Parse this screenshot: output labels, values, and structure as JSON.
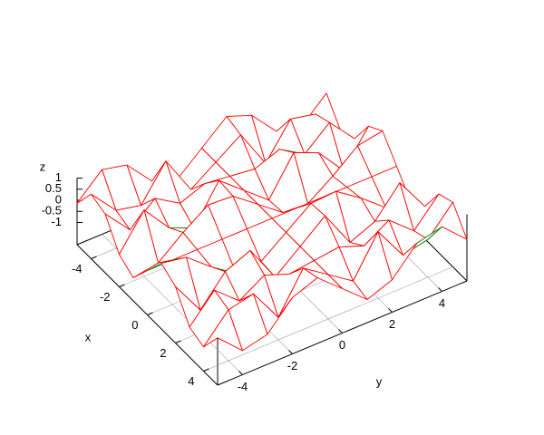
{
  "chart_data": {
    "type": "surface",
    "xlabel": "x",
    "ylabel": "y",
    "zlabel": "z",
    "x": [
      -5,
      -4,
      -3,
      -2,
      -1,
      0,
      1,
      2,
      3,
      4,
      5
    ],
    "y": [
      -5,
      -4,
      -3,
      -2,
      -1,
      0,
      1,
      2,
      3,
      4,
      5
    ],
    "z": [
      [
        -0.13,
        0.91,
        0.65,
        -0.54,
        -0.96,
        0,
        0.96,
        0.54,
        -0.65,
        -0.91,
        0.13
      ],
      [
        0.91,
        -0.29,
        -0.54,
        0.99,
        -0.76,
        0,
        0.76,
        -0.99,
        0.54,
        0.29,
        -0.91
      ],
      [
        0.65,
        -0.54,
        0.41,
        -0.28,
        0.14,
        0,
        -0.14,
        0.28,
        -0.41,
        0.54,
        -0.65
      ],
      [
        -0.54,
        0.99,
        -0.28,
        -0.76,
        0.91,
        0,
        -0.91,
        0.76,
        0.28,
        -0.99,
        0.54
      ],
      [
        -0.96,
        -0.76,
        0.14,
        0.91,
        0.84,
        0,
        -0.84,
        -0.91,
        -0.14,
        0.76,
        0.96
      ],
      [
        0,
        0,
        0,
        0,
        0,
        0,
        0,
        0,
        0,
        0,
        0
      ],
      [
        0.96,
        0.76,
        -0.14,
        -0.91,
        -0.84,
        0,
        0.84,
        0.91,
        0.14,
        -0.76,
        -0.96
      ],
      [
        0.54,
        -0.99,
        0.28,
        0.76,
        -0.91,
        0,
        0.91,
        -0.76,
        -0.28,
        0.99,
        -0.54
      ],
      [
        -0.65,
        0.54,
        -0.41,
        0.28,
        -0.14,
        0,
        0.14,
        -0.28,
        0.41,
        -0.54,
        0.65
      ],
      [
        -0.91,
        0.29,
        0.54,
        -0.99,
        0.76,
        0,
        -0.76,
        0.99,
        -0.54,
        -0.29,
        0.91
      ],
      [
        0.13,
        -0.91,
        -0.65,
        0.54,
        0.96,
        0,
        -0.96,
        -0.54,
        0.65,
        0.91,
        -0.13
      ]
    ],
    "xlim": [
      -5,
      5
    ],
    "ylim": [
      -5,
      5
    ],
    "zlim": [
      -1,
      1
    ],
    "xticks": [
      -4,
      -2,
      0,
      2,
      4
    ],
    "yticks": [
      -4,
      -2,
      0,
      2,
      4
    ],
    "zticks": [
      -1,
      -0.5,
      0,
      0.5,
      1
    ],
    "grid": true,
    "top_color": "#ff0000",
    "bottom_color": "#008000"
  }
}
